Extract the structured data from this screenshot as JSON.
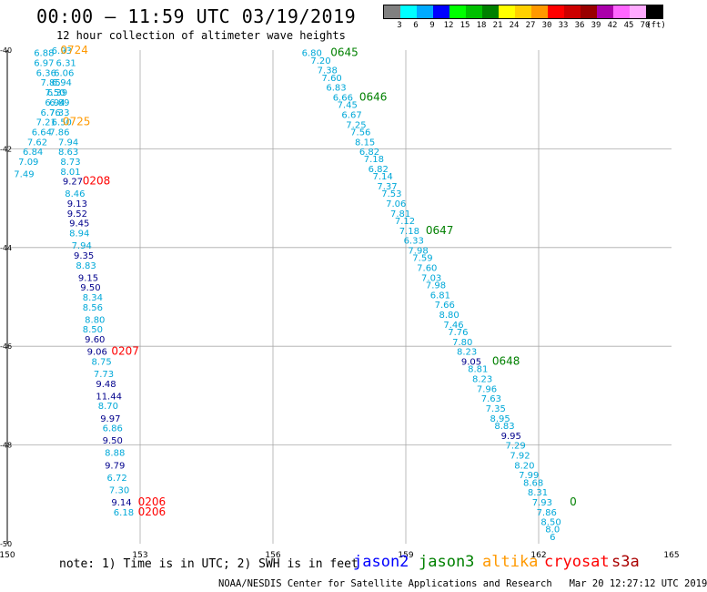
{
  "header": {
    "title": "00:00 — 11:59 UTC 03/19/2019",
    "subtitle": "12 hour collection of altimeter wave heights"
  },
  "legend": {
    "unit": "(ft)",
    "swatches": [
      {
        "color": "#808080",
        "label": "3"
      },
      {
        "color": "#00ffff",
        "label": "6"
      },
      {
        "color": "#00aaff",
        "label": "9"
      },
      {
        "color": "#0000ff",
        "label": "12"
      },
      {
        "color": "#00ff00",
        "label": "15"
      },
      {
        "color": "#00c000",
        "label": "18"
      },
      {
        "color": "#008000",
        "label": "21"
      },
      {
        "color": "#ffff00",
        "label": "24"
      },
      {
        "color": "#ffd000",
        "label": "27"
      },
      {
        "color": "#ff9900",
        "label": "30"
      },
      {
        "color": "#ff0000",
        "label": "33"
      },
      {
        "color": "#cc0000",
        "label": "36"
      },
      {
        "color": "#990000",
        "label": "39"
      },
      {
        "color": "#aa00aa",
        "label": "42"
      },
      {
        "color": "#ff66ff",
        "label": "45"
      },
      {
        "color": "#ffaaff",
        "label": "70"
      },
      {
        "color": "#000000",
        "label": ""
      }
    ]
  },
  "axes": {
    "x_ticks": [
      "150",
      "153",
      "156",
      "159",
      "162",
      "165"
    ],
    "y_ticks": [
      "-40",
      "-42",
      "-44",
      "-46",
      "-48",
      "-50"
    ]
  },
  "colors": {
    "light": "#00a8d8",
    "dark": "#00008c",
    "jason2": "#0000ff",
    "jason3": "#008000",
    "altika": "#ff9900",
    "cryosat": "#ff0000"
  },
  "tracks": {
    "west_values": [
      {
        "v": "6.88",
        "x": 150.6,
        "y": -40.05,
        "c": "light"
      },
      {
        "v": "6.93",
        "x": 151.0,
        "y": -40.0,
        "c": "light"
      },
      {
        "v": "6.97",
        "x": 150.6,
        "y": -40.25,
        "c": "light"
      },
      {
        "v": "6.31",
        "x": 151.1,
        "y": -40.25,
        "c": "light"
      },
      {
        "v": "6.36",
        "x": 150.65,
        "y": -40.45,
        "c": "light"
      },
      {
        "v": "6.06",
        "x": 151.05,
        "y": -40.45,
        "c": "light"
      },
      {
        "v": "7.85",
        "x": 150.75,
        "y": -40.65,
        "c": "light"
      },
      {
        "v": "6.94",
        "x": 151.0,
        "y": -40.65,
        "c": "light"
      },
      {
        "v": "7.50",
        "x": 150.85,
        "y": -40.85,
        "c": "light"
      },
      {
        "v": "6.39",
        "x": 150.9,
        "y": -40.85,
        "c": "light"
      },
      {
        "v": "6.94",
        "x": 150.85,
        "y": -41.05,
        "c": "light"
      },
      {
        "v": "6.89",
        "x": 150.95,
        "y": -41.05,
        "c": "light"
      },
      {
        "v": "6.76",
        "x": 150.75,
        "y": -41.25,
        "c": "light"
      },
      {
        "v": "7.33",
        "x": 150.95,
        "y": -41.25,
        "c": "light"
      },
      {
        "v": "7.21",
        "x": 150.65,
        "y": -41.45,
        "c": "light"
      },
      {
        "v": "6.50",
        "x": 151.0,
        "y": -41.45,
        "c": "light"
      },
      {
        "v": "6.64",
        "x": 150.55,
        "y": -41.65,
        "c": "light"
      },
      {
        "v": "7.86",
        "x": 150.95,
        "y": -41.65,
        "c": "light"
      },
      {
        "v": "7.62",
        "x": 150.45,
        "y": -41.85,
        "c": "light"
      },
      {
        "v": "7.94",
        "x": 151.15,
        "y": -41.85,
        "c": "light"
      },
      {
        "v": "6.84",
        "x": 150.35,
        "y": -42.05,
        "c": "light"
      },
      {
        "v": "8.63",
        "x": 151.15,
        "y": -42.05,
        "c": "light"
      },
      {
        "v": "7.09",
        "x": 150.25,
        "y": -42.25,
        "c": "light"
      },
      {
        "v": "8.73",
        "x": 151.2,
        "y": -42.25,
        "c": "light"
      },
      {
        "v": "7.49",
        "x": 150.15,
        "y": -42.5,
        "c": "light"
      },
      {
        "v": "8.01",
        "x": 151.2,
        "y": -42.45,
        "c": "light"
      },
      {
        "v": "9.27",
        "x": 151.25,
        "y": -42.65,
        "c": "dark"
      },
      {
        "v": "8.46",
        "x": 151.3,
        "y": -42.9,
        "c": "light"
      },
      {
        "v": "9.13",
        "x": 151.35,
        "y": -43.1,
        "c": "dark"
      },
      {
        "v": "9.52",
        "x": 151.35,
        "y": -43.3,
        "c": "dark"
      },
      {
        "v": "9.45",
        "x": 151.4,
        "y": -43.5,
        "c": "dark"
      },
      {
        "v": "8.94",
        "x": 151.4,
        "y": -43.7,
        "c": "light"
      },
      {
        "v": "7.94",
        "x": 151.45,
        "y": -43.95,
        "c": "light"
      },
      {
        "v": "9.35",
        "x": 151.5,
        "y": -44.15,
        "c": "dark"
      },
      {
        "v": "8.83",
        "x": 151.55,
        "y": -44.35,
        "c": "light"
      },
      {
        "v": "9.15",
        "x": 151.6,
        "y": -44.6,
        "c": "dark"
      },
      {
        "v": "9.50",
        "x": 151.65,
        "y": -44.8,
        "c": "dark"
      },
      {
        "v": "8.34",
        "x": 151.7,
        "y": -45.0,
        "c": "light"
      },
      {
        "v": "8.56",
        "x": 151.7,
        "y": -45.2,
        "c": "light"
      },
      {
        "v": "8.80",
        "x": 151.75,
        "y": -45.45,
        "c": "light"
      },
      {
        "v": "8.50",
        "x": 151.7,
        "y": -45.65,
        "c": "light"
      },
      {
        "v": "9.60",
        "x": 151.75,
        "y": -45.85,
        "c": "dark"
      },
      {
        "v": "9.06",
        "x": 151.8,
        "y": -46.1,
        "c": "dark"
      },
      {
        "v": "8.75",
        "x": 151.9,
        "y": -46.3,
        "c": "light"
      },
      {
        "v": "7.73",
        "x": 151.95,
        "y": -46.55,
        "c": "light"
      },
      {
        "v": "9.48",
        "x": 152.0,
        "y": -46.75,
        "c": "dark"
      },
      {
        "v": "11.44",
        "x": 152.0,
        "y": -47.0,
        "c": "dark"
      },
      {
        "v": "8.70",
        "x": 152.05,
        "y": -47.2,
        "c": "light"
      },
      {
        "v": "9.97",
        "x": 152.1,
        "y": -47.45,
        "c": "dark"
      },
      {
        "v": "6.86",
        "x": 152.15,
        "y": -47.65,
        "c": "light"
      },
      {
        "v": "9.50",
        "x": 152.15,
        "y": -47.9,
        "c": "dark"
      },
      {
        "v": "8.88",
        "x": 152.2,
        "y": -48.15,
        "c": "light"
      },
      {
        "v": "9.79",
        "x": 152.2,
        "y": -48.4,
        "c": "dark"
      },
      {
        "v": "6.72",
        "x": 152.25,
        "y": -48.65,
        "c": "light"
      },
      {
        "v": "7.30",
        "x": 152.3,
        "y": -48.9,
        "c": "light"
      },
      {
        "v": "9.14",
        "x": 152.35,
        "y": -49.15,
        "c": "dark"
      },
      {
        "v": "6.18",
        "x": 152.4,
        "y": -49.35,
        "c": "light"
      }
    ],
    "east_values": [
      {
        "v": "6.80",
        "x": 156.65,
        "y": -40.05,
        "c": "light"
      },
      {
        "v": "7.20",
        "x": 156.85,
        "y": -40.2,
        "c": "light"
      },
      {
        "v": "7.38",
        "x": 157.0,
        "y": -40.4,
        "c": "light"
      },
      {
        "v": "7.60",
        "x": 157.1,
        "y": -40.55,
        "c": "light"
      },
      {
        "v": "6.83",
        "x": 157.2,
        "y": -40.75,
        "c": "light"
      },
      {
        "v": "6.66",
        "x": 157.35,
        "y": -40.95,
        "c": "light"
      },
      {
        "v": "7.45",
        "x": 157.45,
        "y": -41.1,
        "c": "light"
      },
      {
        "v": "6.67",
        "x": 157.55,
        "y": -41.3,
        "c": "light"
      },
      {
        "v": "7.25",
        "x": 157.65,
        "y": -41.5,
        "c": "light"
      },
      {
        "v": "7.56",
        "x": 157.75,
        "y": -41.65,
        "c": "light"
      },
      {
        "v": "8.15",
        "x": 157.85,
        "y": -41.85,
        "c": "light"
      },
      {
        "v": "6.82",
        "x": 157.95,
        "y": -42.05,
        "c": "light"
      },
      {
        "v": "7.18",
        "x": 158.05,
        "y": -42.2,
        "c": "light"
      },
      {
        "v": "6.82",
        "x": 158.15,
        "y": -42.4,
        "c": "light"
      },
      {
        "v": "7.14",
        "x": 158.25,
        "y": -42.55,
        "c": "light"
      },
      {
        "v": "7.37",
        "x": 158.35,
        "y": -42.75,
        "c": "light"
      },
      {
        "v": "7.53",
        "x": 158.45,
        "y": -42.9,
        "c": "light"
      },
      {
        "v": "7.06",
        "x": 158.55,
        "y": -43.1,
        "c": "light"
      },
      {
        "v": "7.81",
        "x": 158.65,
        "y": -43.3,
        "c": "light"
      },
      {
        "v": "7.12",
        "x": 158.75,
        "y": -43.45,
        "c": "light"
      },
      {
        "v": "7.18",
        "x": 158.85,
        "y": -43.65,
        "c": "light"
      },
      {
        "v": "6.33",
        "x": 158.95,
        "y": -43.85,
        "c": "light"
      },
      {
        "v": "7.98",
        "x": 159.05,
        "y": -44.05,
        "c": "light"
      },
      {
        "v": "7.59",
        "x": 159.15,
        "y": -44.2,
        "c": "light"
      },
      {
        "v": "7.60",
        "x": 159.25,
        "y": -44.4,
        "c": "light"
      },
      {
        "v": "7.03",
        "x": 159.35,
        "y": -44.6,
        "c": "light"
      },
      {
        "v": "7.98",
        "x": 159.45,
        "y": -44.75,
        "c": "light"
      },
      {
        "v": "6.81",
        "x": 159.55,
        "y": -44.95,
        "c": "light"
      },
      {
        "v": "7.66",
        "x": 159.65,
        "y": -45.15,
        "c": "light"
      },
      {
        "v": "8.80",
        "x": 159.75,
        "y": -45.35,
        "c": "light"
      },
      {
        "v": "7.46",
        "x": 159.85,
        "y": -45.55,
        "c": "light"
      },
      {
        "v": "7.76",
        "x": 159.95,
        "y": -45.7,
        "c": "light"
      },
      {
        "v": "7.80",
        "x": 160.05,
        "y": -45.9,
        "c": "light"
      },
      {
        "v": "8.23",
        "x": 160.15,
        "y": -46.1,
        "c": "light"
      },
      {
        "v": "9.05",
        "x": 160.25,
        "y": -46.3,
        "c": "dark"
      },
      {
        "v": "8.81",
        "x": 160.4,
        "y": -46.45,
        "c": "light"
      },
      {
        "v": "8.23",
        "x": 160.5,
        "y": -46.65,
        "c": "light"
      },
      {
        "v": "7.96",
        "x": 160.6,
        "y": -46.85,
        "c": "light"
      },
      {
        "v": "7.63",
        "x": 160.7,
        "y": -47.05,
        "c": "light"
      },
      {
        "v": "7.35",
        "x": 160.8,
        "y": -47.25,
        "c": "light"
      },
      {
        "v": "8.95",
        "x": 160.9,
        "y": -47.45,
        "c": "light"
      },
      {
        "v": "8.83",
        "x": 161.0,
        "y": -47.6,
        "c": "light"
      },
      {
        "v": "9.95",
        "x": 161.15,
        "y": -47.8,
        "c": "dark"
      },
      {
        "v": "7.29",
        "x": 161.25,
        "y": -48.0,
        "c": "light"
      },
      {
        "v": "7.92",
        "x": 161.35,
        "y": -48.2,
        "c": "light"
      },
      {
        "v": "8.20",
        "x": 161.45,
        "y": -48.4,
        "c": "light"
      },
      {
        "v": "7.99",
        "x": 161.55,
        "y": -48.6,
        "c": "light"
      },
      {
        "v": "8.68",
        "x": 161.65,
        "y": -48.75,
        "c": "light"
      },
      {
        "v": "8.31",
        "x": 161.75,
        "y": -48.95,
        "c": "light"
      },
      {
        "v": "7.93",
        "x": 161.85,
        "y": -49.15,
        "c": "light"
      },
      {
        "v": "7.86",
        "x": 161.95,
        "y": -49.35,
        "c": "light"
      },
      {
        "v": "8.50",
        "x": 162.05,
        "y": -49.55,
        "c": "light"
      },
      {
        "v": "8.0",
        "x": 162.15,
        "y": -49.7,
        "c": "light"
      },
      {
        "v": "6",
        "x": 162.25,
        "y": -49.85,
        "c": "light"
      }
    ],
    "time_labels": [
      {
        "v": "0724",
        "x": 151.2,
        "y": -40.0,
        "c": "altika"
      },
      {
        "v": "0725",
        "x": 151.25,
        "y": -41.45,
        "c": "altika"
      },
      {
        "v": "0208",
        "x": 151.7,
        "y": -42.65,
        "c": "cryosat"
      },
      {
        "v": "0207",
        "x": 152.35,
        "y": -46.1,
        "c": "cryosat"
      },
      {
        "v": "0206",
        "x": 152.95,
        "y": -49.15,
        "c": "cryosat"
      },
      {
        "v": "0206",
        "x": 152.95,
        "y": -49.35,
        "c": "cryosat"
      },
      {
        "v": "0645",
        "x": 157.3,
        "y": -40.05,
        "c": "jason3"
      },
      {
        "v": "0646",
        "x": 157.95,
        "y": -40.95,
        "c": "jason3"
      },
      {
        "v": "0647",
        "x": 159.45,
        "y": -43.65,
        "c": "jason3"
      },
      {
        "v": "0648",
        "x": 160.95,
        "y": -46.3,
        "c": "jason3"
      },
      {
        "v": "0",
        "x": 162.7,
        "y": -49.15,
        "c": "jason3"
      }
    ]
  },
  "footer": {
    "note": "note: 1) Time is in UTC; 2) SWH is in feet",
    "satellites": [
      {
        "name": "jason2",
        "color": "#0000ff"
      },
      {
        "name": "jason3",
        "color": "#008000"
      },
      {
        "name": "altika",
        "color": "#ff9900"
      },
      {
        "name": "cryosat",
        "color": "#ff0000"
      },
      {
        "name": "s3a",
        "color": "#aa0000"
      }
    ],
    "credit": "NOAA/NESDIS Center for Satellite Applications and Research   Mar 20 12:27:12 UTC 2019"
  }
}
